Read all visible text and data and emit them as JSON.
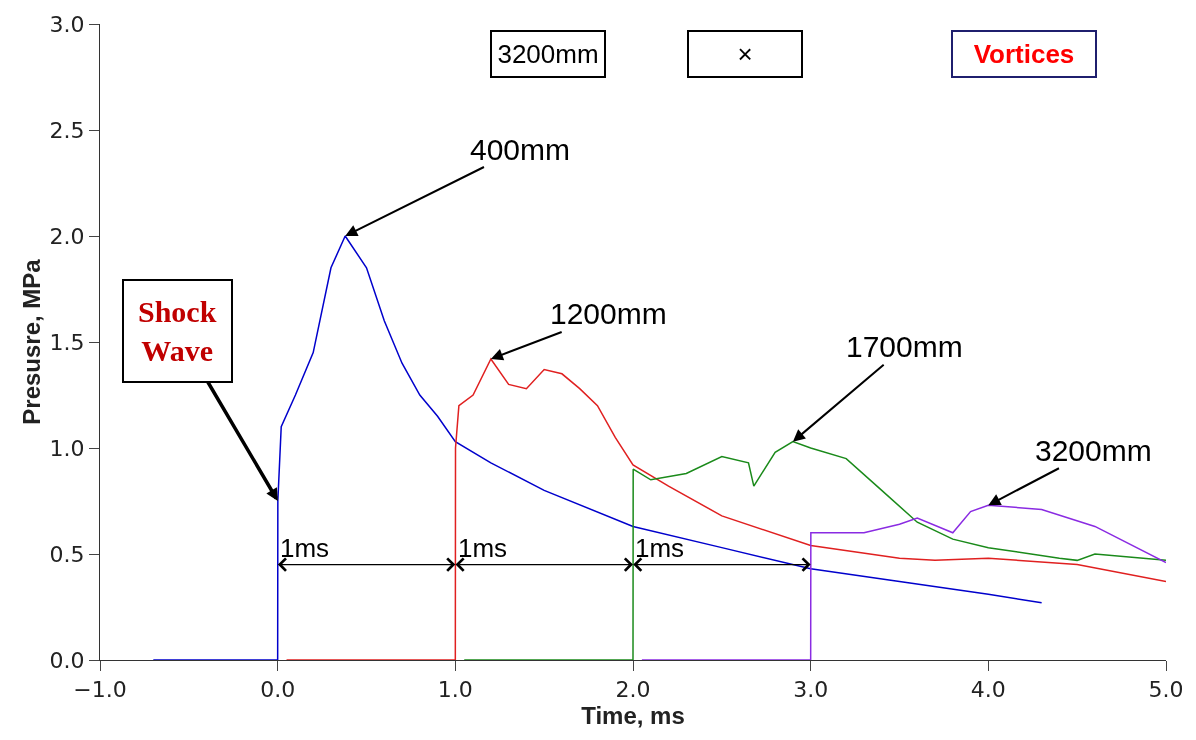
{
  "chart_data": {
    "type": "line",
    "xlabel": "Time, ms",
    "ylabel": "Presusre, MPa",
    "xlim": [
      -1.0,
      5.0
    ],
    "xticks": [
      {
        "value": -1,
        "label": "−1.0"
      },
      {
        "value": 0,
        "label": "0.0"
      },
      {
        "value": 1,
        "label": "1.0"
      },
      {
        "value": 2,
        "label": "2.0"
      },
      {
        "value": 3,
        "label": "3.0"
      },
      {
        "value": 4,
        "label": "4.0"
      },
      {
        "value": 5,
        "label": "5.0"
      }
    ],
    "ylim": [
      0,
      3.0
    ],
    "yticks": [
      {
        "value": 0,
        "label": "0.0"
      },
      {
        "value": 0.5,
        "label": "0.5"
      },
      {
        "value": 1,
        "label": "1.0"
      },
      {
        "value": 1.5,
        "label": "1.5"
      },
      {
        "value": 2,
        "label": "2.0"
      },
      {
        "value": 2.5,
        "label": "2.5"
      },
      {
        "value": 3,
        "label": "3.0"
      }
    ],
    "grid": false,
    "legend": false,
    "marker": "none",
    "line_style": "solid",
    "series": [
      {
        "name": "400mm",
        "color": "#0000cc",
        "x": [
          -0.7,
          0,
          0.001,
          0.02,
          0.1,
          0.2,
          0.3,
          0.38,
          0.5,
          0.6,
          0.7,
          0.8,
          0.9,
          1.0,
          1.2,
          1.5,
          2.0,
          2.5,
          3.0,
          3.5,
          4.0,
          4.3
        ],
        "values": [
          0,
          0,
          0.75,
          1.1,
          1.25,
          1.45,
          1.85,
          2.0,
          1.85,
          1.6,
          1.4,
          1.25,
          1.15,
          1.03,
          0.93,
          0.8,
          0.63,
          0.53,
          0.43,
          0.37,
          0.31,
          0.27
        ]
      },
      {
        "name": "1200mm",
        "color": "#e02020",
        "x": [
          0.05,
          1.0,
          1.001,
          1.02,
          1.1,
          1.2,
          1.3,
          1.4,
          1.5,
          1.6,
          1.7,
          1.8,
          1.9,
          2.0,
          2.2,
          2.5,
          3.0,
          3.5,
          3.7,
          4.0,
          4.5,
          5.0
        ],
        "values": [
          0,
          0,
          1.0,
          1.2,
          1.25,
          1.42,
          1.3,
          1.28,
          1.37,
          1.35,
          1.28,
          1.2,
          1.05,
          0.92,
          0.82,
          0.68,
          0.54,
          0.48,
          0.47,
          0.48,
          0.45,
          0.37
        ]
      },
      {
        "name": "1700mm",
        "color": "#1a8a1a",
        "x": [
          1.05,
          2.0,
          2.001,
          2.1,
          2.3,
          2.5,
          2.65,
          2.68,
          2.8,
          2.9,
          3.0,
          3.2,
          3.4,
          3.6,
          3.8,
          4.0,
          4.4,
          4.5,
          4.6,
          5.0
        ],
        "values": [
          0,
          0,
          0.9,
          0.85,
          0.88,
          0.96,
          0.93,
          0.82,
          0.98,
          1.03,
          1.0,
          0.95,
          0.8,
          0.65,
          0.57,
          0.53,
          0.48,
          0.47,
          0.5,
          0.47
        ]
      },
      {
        "name": "3200mm",
        "color": "#8a2be2",
        "x": [
          2.05,
          3.0,
          3.001,
          3.1,
          3.3,
          3.5,
          3.6,
          3.8,
          3.9,
          4.0,
          4.3,
          4.6,
          5.0
        ],
        "values": [
          0,
          0,
          0.6,
          0.6,
          0.6,
          0.64,
          0.67,
          0.6,
          0.7,
          0.73,
          0.71,
          0.63,
          0.46
        ]
      }
    ],
    "annotations": [
      {
        "text": "Shock Wave",
        "x": 0.001,
        "y": 0.75
      },
      "3200mm",
      "×",
      "Vortices",
      {
        "text": "1ms",
        "x": 1.0,
        "y": 0.45
      },
      {
        "text": "1ms",
        "x": 2.0,
        "y": 0.45
      },
      {
        "text": "1ms",
        "x": 3.0,
        "y": 0.45
      }
    ]
  }
}
